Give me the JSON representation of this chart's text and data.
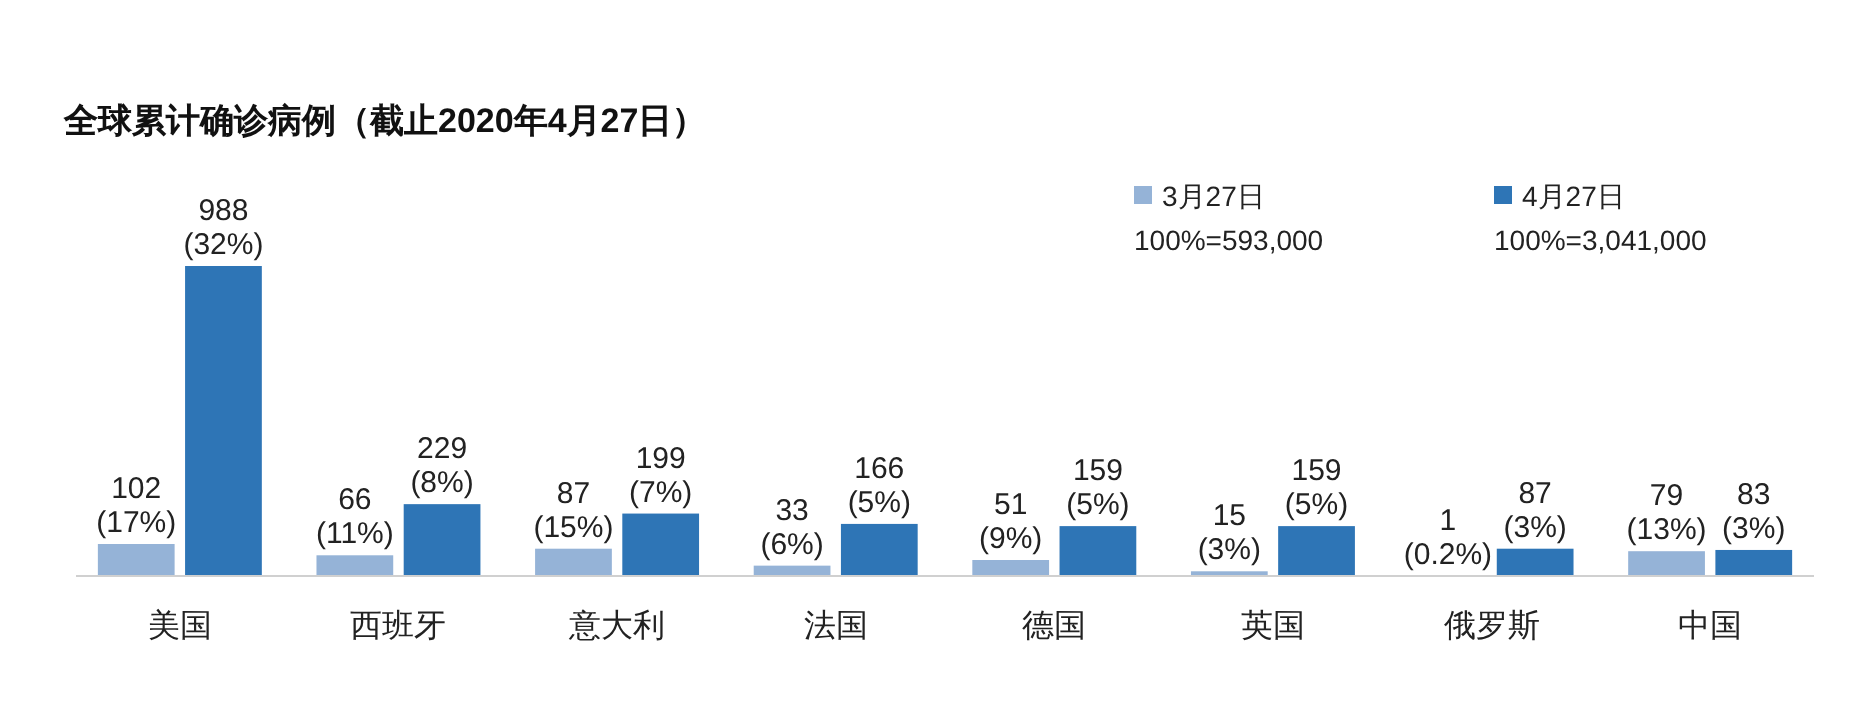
{
  "chart_data": {
    "type": "bar",
    "title": "全球累计确诊病例（截止2020年4月27日）",
    "categories": [
      "美国",
      "西班牙",
      "意大利",
      "法国",
      "德国",
      "英国",
      "俄罗斯",
      "中国"
    ],
    "series": [
      {
        "name": "3月27日",
        "color": "#95b3d7",
        "values": [
          102,
          66,
          87,
          33,
          51,
          15,
          1,
          79
        ],
        "value_labels": [
          "102\n(17%)",
          "66\n(11%)",
          "87\n(15%)",
          "33\n(6%)",
          "51\n(9%)",
          "15\n(3%)",
          "1\n(0.2%)",
          "79\n(13%)"
        ]
      },
      {
        "name": "4月27日",
        "color": "#2e75b6",
        "values": [
          988,
          229,
          199,
          166,
          159,
          159,
          87,
          83
        ],
        "value_labels": [
          "988\n(32%)",
          "229\n(8%)",
          "199\n(7%)",
          "166\n(5%)",
          "159\n(5%)",
          "159\n(5%)",
          "87\n(3%)",
          "83\n(3%)"
        ]
      }
    ],
    "annotations": [
      "100%=593,000",
      "100%=3,041,000"
    ],
    "legend": "top right",
    "tick_labels": "x"
  }
}
